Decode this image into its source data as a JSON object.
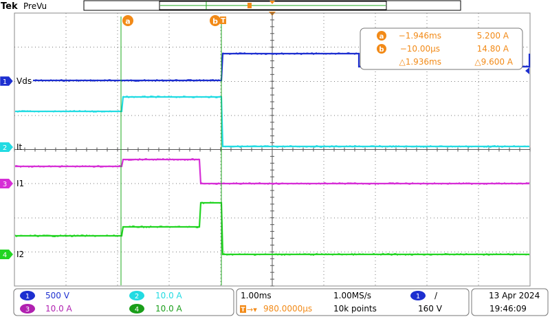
{
  "header": {
    "brand": "Tek",
    "mode": "PreVu"
  },
  "cursors": {
    "a_label": "a",
    "b_label": "b",
    "readout": {
      "a": {
        "time": "−1.946ms",
        "value": "5.200 A"
      },
      "b": {
        "time": "−10.00µs",
        "value": "14.80 A"
      },
      "delta": {
        "time": "△1.936ms",
        "value": "△9.600 A"
      }
    }
  },
  "channels": [
    {
      "number": "1",
      "label": "Vds",
      "color": "#1d2fd0",
      "scale": "500 V"
    },
    {
      "number": "2",
      "label": "It",
      "color": "#22dbe2",
      "scale": "10.0 A"
    },
    {
      "number": "3",
      "label": "I1",
      "color": "#d62ed6",
      "scale": "10.0 A"
    },
    {
      "number": "4",
      "label": "I2",
      "color": "#22d422",
      "scale": "10.0 A"
    }
  ],
  "timebase": {
    "scale": "1.00ms",
    "sample_rate": "1.00MS/s",
    "delay": "980.0000µs",
    "record_length": "10k points"
  },
  "trigger": {
    "source": "1",
    "slope": "/",
    "level": "160 V"
  },
  "datetime": {
    "date": "13 Apr  2024",
    "time": "19:46:09"
  },
  "colors": {
    "cursor": "#1eaa1e",
    "orange": "#f28a17",
    "grid": "#555555",
    "panel_border": "#777777"
  }
}
